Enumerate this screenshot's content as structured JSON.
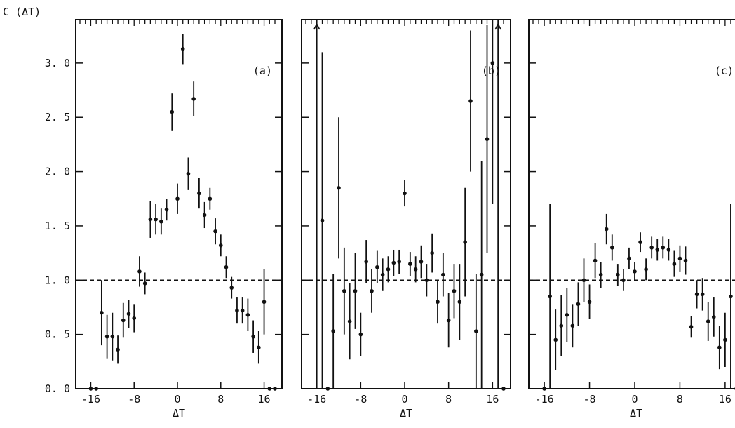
{
  "figure": {
    "ylabel": "C (ΔT)",
    "xlabel": "ΔT",
    "reference_line_y": 1.0
  },
  "chart_data": [
    {
      "type": "scatter",
      "panel_label": "(a)",
      "xlabel": "ΔT",
      "ylabel": "C (ΔT)",
      "xlim": [
        -18,
        18
      ],
      "ylim": [
        0,
        3.4
      ],
      "x_ticks": [
        "-16",
        "-8",
        "0",
        "8",
        "16"
      ],
      "y_ticks": [
        "0. 0",
        "0. 5",
        "1. 0",
        "1. 5",
        "2. 0",
        "2. 5",
        "3. 0"
      ],
      "error_bars": true,
      "points": [
        {
          "x": -16,
          "y": 0.0,
          "err": 0.0
        },
        {
          "x": -15,
          "y": 0.0,
          "err": 0.0
        },
        {
          "x": -14,
          "y": 0.7,
          "err": 0.3
        },
        {
          "x": -13,
          "y": 0.48,
          "err": 0.2
        },
        {
          "x": -12,
          "y": 0.48,
          "err": 0.22
        },
        {
          "x": -11,
          "y": 0.36,
          "err": 0.13
        },
        {
          "x": -10,
          "y": 0.63,
          "err": 0.16
        },
        {
          "x": -9,
          "y": 0.69,
          "err": 0.13
        },
        {
          "x": -8,
          "y": 0.65,
          "err": 0.13
        },
        {
          "x": -7,
          "y": 1.08,
          "err": 0.14
        },
        {
          "x": -6,
          "y": 0.97,
          "err": 0.1
        },
        {
          "x": -5,
          "y": 1.56,
          "err": 0.17
        },
        {
          "x": -4,
          "y": 1.56,
          "err": 0.14
        },
        {
          "x": -3,
          "y": 1.54,
          "err": 0.12
        },
        {
          "x": -2,
          "y": 1.65,
          "err": 0.1
        },
        {
          "x": -1,
          "y": 2.55,
          "err": 0.17
        },
        {
          "x": 0,
          "y": 1.75,
          "err": 0.14
        },
        {
          "x": 1,
          "y": 3.13,
          "err": 0.14
        },
        {
          "x": 2,
          "y": 1.98,
          "err": 0.15
        },
        {
          "x": 3,
          "y": 2.67,
          "err": 0.16
        },
        {
          "x": 4,
          "y": 1.8,
          "err": 0.14
        },
        {
          "x": 5,
          "y": 1.6,
          "err": 0.12
        },
        {
          "x": 6,
          "y": 1.75,
          "err": 0.1
        },
        {
          "x": 7,
          "y": 1.45,
          "err": 0.12
        },
        {
          "x": 8,
          "y": 1.32,
          "err": 0.1
        },
        {
          "x": 9,
          "y": 1.12,
          "err": 0.1
        },
        {
          "x": 10,
          "y": 0.93,
          "err": 0.1
        },
        {
          "x": 11,
          "y": 0.72,
          "err": 0.12
        },
        {
          "x": 12,
          "y": 0.72,
          "err": 0.12
        },
        {
          "x": 13,
          "y": 0.68,
          "err": 0.15
        },
        {
          "x": 14,
          "y": 0.48,
          "err": 0.15
        },
        {
          "x": 15,
          "y": 0.38,
          "err": 0.15
        },
        {
          "x": 16,
          "y": 0.8,
          "err": 0.3
        },
        {
          "x": 17,
          "y": 0.0,
          "err": 0.0
        },
        {
          "x": 18,
          "y": 0.0,
          "err": 0.0
        }
      ]
    },
    {
      "type": "scatter",
      "panel_label": "(b)",
      "xlabel": "ΔT",
      "ylabel": "",
      "xlim": [
        -18,
        18
      ],
      "ylim": [
        0,
        3.4
      ],
      "x_ticks": [
        "-16",
        "-8",
        "0",
        "8",
        "16"
      ],
      "y_ticks": [],
      "error_bars": true,
      "points": [
        {
          "x": -16,
          "y": 3.4,
          "err": 3.4,
          "arrow": true
        },
        {
          "x": -15,
          "y": 1.55,
          "err": 1.55
        },
        {
          "x": -14,
          "y": 0.0,
          "err": 0.0
        },
        {
          "x": -13,
          "y": 0.53,
          "err": 0.53
        },
        {
          "x": -12,
          "y": 1.85,
          "err": 0.65
        },
        {
          "x": -11,
          "y": 0.9,
          "err": 0.4
        },
        {
          "x": -10,
          "y": 0.62,
          "err": 0.35
        },
        {
          "x": -9,
          "y": 0.9,
          "err": 0.35
        },
        {
          "x": -8,
          "y": 0.5,
          "err": 0.2
        },
        {
          "x": -7,
          "y": 1.17,
          "err": 0.2
        },
        {
          "x": -6,
          "y": 0.9,
          "err": 0.2
        },
        {
          "x": -5,
          "y": 1.12,
          "err": 0.15
        },
        {
          "x": -4,
          "y": 1.05,
          "err": 0.15
        },
        {
          "x": -3,
          "y": 1.1,
          "err": 0.12
        },
        {
          "x": -2,
          "y": 1.16,
          "err": 0.12
        },
        {
          "x": -1,
          "y": 1.17,
          "err": 0.11
        },
        {
          "x": 0,
          "y": 1.8,
          "err": 0.12
        },
        {
          "x": 1,
          "y": 1.15,
          "err": 0.11
        },
        {
          "x": 2,
          "y": 1.1,
          "err": 0.12
        },
        {
          "x": 3,
          "y": 1.17,
          "err": 0.15
        },
        {
          "x": 4,
          "y": 1.0,
          "err": 0.15
        },
        {
          "x": 5,
          "y": 1.25,
          "err": 0.18
        },
        {
          "x": 6,
          "y": 0.8,
          "err": 0.2
        },
        {
          "x": 7,
          "y": 1.05,
          "err": 0.2
        },
        {
          "x": 8,
          "y": 0.63,
          "err": 0.25
        },
        {
          "x": 9,
          "y": 0.9,
          "err": 0.25
        },
        {
          "x": 10,
          "y": 0.8,
          "err": 0.35
        },
        {
          "x": 11,
          "y": 1.35,
          "err": 0.5
        },
        {
          "x": 12,
          "y": 2.65,
          "err": 0.65
        },
        {
          "x": 13,
          "y": 0.53,
          "err": 0.53
        },
        {
          "x": 14,
          "y": 1.05,
          "err": 1.05
        },
        {
          "x": 15,
          "y": 2.3,
          "err": 1.05
        },
        {
          "x": 16,
          "y": 3.0,
          "err": 1.3
        },
        {
          "x": 17,
          "y": 3.4,
          "err": 3.4,
          "arrow": true
        },
        {
          "x": 18,
          "y": 0.0,
          "err": 0.0
        }
      ]
    },
    {
      "type": "scatter",
      "panel_label": "(c)",
      "xlabel": "ΔT",
      "ylabel": "",
      "xlim": [
        -18,
        18
      ],
      "ylim": [
        0,
        3.4
      ],
      "x_ticks": [
        "-16",
        "-8",
        "0",
        "8",
        "16"
      ],
      "y_ticks": [],
      "error_bars": true,
      "points": [
        {
          "x": -16,
          "y": 0.0,
          "err": 0.0
        },
        {
          "x": -15,
          "y": 0.85,
          "err": 0.85
        },
        {
          "x": -14,
          "y": 0.45,
          "err": 0.28
        },
        {
          "x": -13,
          "y": 0.58,
          "err": 0.28
        },
        {
          "x": -12,
          "y": 0.68,
          "err": 0.25
        },
        {
          "x": -11,
          "y": 0.58,
          "err": 0.2
        },
        {
          "x": -10,
          "y": 0.78,
          "err": 0.2
        },
        {
          "x": -9,
          "y": 1.0,
          "err": 0.2
        },
        {
          "x": -8,
          "y": 0.8,
          "err": 0.16
        },
        {
          "x": -7,
          "y": 1.18,
          "err": 0.16
        },
        {
          "x": -6,
          "y": 1.05,
          "err": 0.12
        },
        {
          "x": -5,
          "y": 1.47,
          "err": 0.14
        },
        {
          "x": -4,
          "y": 1.3,
          "err": 0.12
        },
        {
          "x": -3,
          "y": 1.05,
          "err": 0.1
        },
        {
          "x": -2,
          "y": 1.0,
          "err": 0.1
        },
        {
          "x": -1,
          "y": 1.2,
          "err": 0.1
        },
        {
          "x": 0,
          "y": 1.08,
          "err": 0.09
        },
        {
          "x": 1,
          "y": 1.35,
          "err": 0.09
        },
        {
          "x": 2,
          "y": 1.1,
          "err": 0.1
        },
        {
          "x": 3,
          "y": 1.3,
          "err": 0.1
        },
        {
          "x": 4,
          "y": 1.28,
          "err": 0.1
        },
        {
          "x": 5,
          "y": 1.3,
          "err": 0.1
        },
        {
          "x": 6,
          "y": 1.28,
          "err": 0.1
        },
        {
          "x": 7,
          "y": 1.15,
          "err": 0.12
        },
        {
          "x": 8,
          "y": 1.2,
          "err": 0.12
        },
        {
          "x": 9,
          "y": 1.18,
          "err": 0.13
        },
        {
          "x": 10,
          "y": 0.57,
          "err": 0.1
        },
        {
          "x": 11,
          "y": 0.87,
          "err": 0.13
        },
        {
          "x": 12,
          "y": 0.87,
          "err": 0.15
        },
        {
          "x": 13,
          "y": 0.62,
          "err": 0.18
        },
        {
          "x": 14,
          "y": 0.66,
          "err": 0.18
        },
        {
          "x": 15,
          "y": 0.38,
          "err": 0.2
        },
        {
          "x": 16,
          "y": 0.45,
          "err": 0.25
        },
        {
          "x": 17,
          "y": 0.85,
          "err": 0.85
        },
        {
          "x": 18,
          "y": 0.0,
          "err": 0.0
        }
      ]
    }
  ]
}
